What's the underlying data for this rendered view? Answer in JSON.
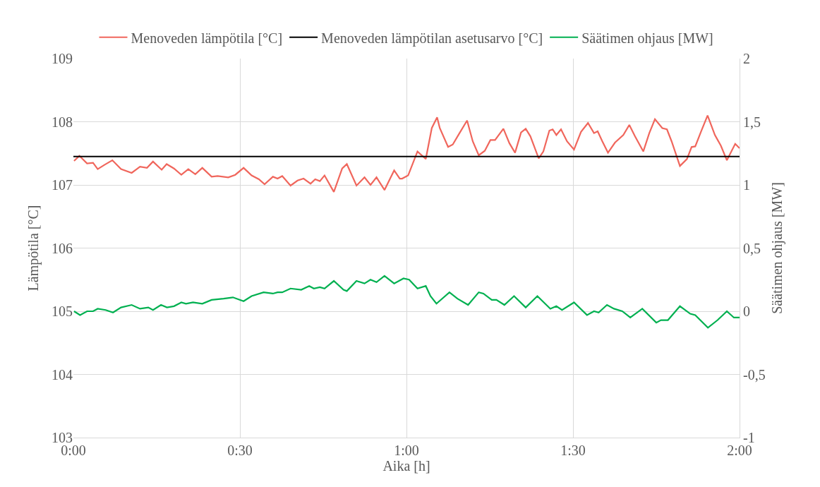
{
  "chart_data": {
    "type": "line",
    "xlabel": "Aika [h]",
    "ylabel": "Lämpötila [°C]",
    "y2label": "Säätimen ohjaus [MW]",
    "xlim": [
      0,
      2
    ],
    "xticks": [
      {
        "value": 0,
        "label": "0:00"
      },
      {
        "value": 0.5,
        "label": "0:30"
      },
      {
        "value": 1,
        "label": "1:00"
      },
      {
        "value": 1.5,
        "label": "1:30"
      },
      {
        "value": 2,
        "label": "2:00"
      }
    ],
    "ylim": [
      103,
      109
    ],
    "yticks": [
      103,
      104,
      105,
      106,
      107,
      108,
      109
    ],
    "y2lim": [
      -1,
      2
    ],
    "y2ticks": [
      -1,
      {
        "value": -0.5,
        "label": "-0,5"
      },
      0,
      {
        "value": 0.5,
        "label": "0,5"
      },
      1,
      {
        "value": 1.5,
        "label": "1,5"
      },
      2
    ],
    "grid": true,
    "legend": "top",
    "line_style": "solid",
    "marker": "none",
    "series": [
      {
        "name": "Menoveden lämpötila [°C]",
        "color": "#f0665c",
        "x": [
          0.002,
          0.018,
          0.041,
          0.059,
          0.073,
          0.094,
          0.117,
          0.143,
          0.175,
          0.2,
          0.221,
          0.239,
          0.265,
          0.28,
          0.302,
          0.324,
          0.345,
          0.366,
          0.387,
          0.415,
          0.433,
          0.465,
          0.486,
          0.511,
          0.535,
          0.557,
          0.574,
          0.599,
          0.613,
          0.627,
          0.652,
          0.673,
          0.691,
          0.712,
          0.726,
          0.74,
          0.754,
          0.782,
          0.807,
          0.821,
          0.85,
          0.874,
          0.892,
          0.91,
          0.934,
          0.963,
          0.98,
          0.987,
          1.005,
          1.033,
          1.058,
          1.076,
          1.092,
          1.1,
          1.125,
          1.139,
          1.157,
          1.182,
          1.199,
          1.217,
          1.235,
          1.252,
          1.266,
          1.291,
          1.309,
          1.326,
          1.344,
          1.358,
          1.372,
          1.397,
          1.411,
          1.429,
          1.439,
          1.45,
          1.464,
          1.482,
          1.503,
          1.524,
          1.545,
          1.563,
          1.574,
          1.588,
          1.605,
          1.626,
          1.651,
          1.669,
          1.686,
          1.711,
          1.729,
          1.746,
          1.768,
          1.782,
          1.796,
          1.821,
          1.842,
          1.856,
          1.867,
          1.884,
          1.904,
          1.926,
          1.944,
          1.962,
          1.987,
          2.0
        ],
        "values": [
          107.38,
          107.46,
          107.34,
          107.35,
          107.25,
          107.32,
          107.39,
          107.25,
          107.19,
          107.29,
          107.27,
          107.37,
          107.24,
          107.33,
          107.26,
          107.16,
          107.25,
          107.17,
          107.27,
          107.13,
          107.14,
          107.12,
          107.16,
          107.27,
          107.15,
          107.09,
          107.01,
          107.13,
          107.1,
          107.14,
          106.99,
          107.07,
          107.1,
          107.02,
          107.09,
          107.06,
          107.15,
          106.89,
          107.26,
          107.33,
          106.99,
          107.12,
          107.0,
          107.12,
          106.92,
          107.23,
          107.1,
          107.1,
          107.15,
          107.53,
          107.41,
          107.9,
          108.07,
          107.9,
          107.6,
          107.64,
          107.8,
          108.02,
          107.69,
          107.47,
          107.54,
          107.71,
          107.71,
          107.89,
          107.66,
          107.51,
          107.83,
          107.89,
          107.77,
          107.42,
          107.53,
          107.86,
          107.88,
          107.79,
          107.88,
          107.69,
          107.56,
          107.84,
          107.98,
          107.82,
          107.85,
          107.69,
          107.51,
          107.67,
          107.79,
          107.95,
          107.77,
          107.53,
          107.82,
          108.04,
          107.9,
          107.88,
          107.69,
          107.3,
          107.41,
          107.6,
          107.61,
          107.84,
          108.1,
          107.79,
          107.62,
          107.39,
          107.65,
          107.58
        ]
      },
      {
        "name": "Menoveden lämpötilan asetusarvo [°C]",
        "color": "#000000",
        "x": [
          0,
          2
        ],
        "values": [
          107.45,
          107.45
        ]
      },
      {
        "name": "Säätimen ohjaus [MW]",
        "color": "#00b050",
        "axis": "y2",
        "x": [
          0.002,
          0.02,
          0.041,
          0.059,
          0.073,
          0.097,
          0.119,
          0.143,
          0.175,
          0.2,
          0.225,
          0.239,
          0.263,
          0.281,
          0.302,
          0.324,
          0.338,
          0.359,
          0.387,
          0.415,
          0.451,
          0.479,
          0.511,
          0.535,
          0.571,
          0.599,
          0.613,
          0.627,
          0.652,
          0.684,
          0.708,
          0.722,
          0.74,
          0.754,
          0.782,
          0.811,
          0.821,
          0.85,
          0.874,
          0.892,
          0.91,
          0.934,
          0.963,
          0.991,
          1.008,
          1.033,
          1.058,
          1.072,
          1.09,
          1.129,
          1.153,
          1.185,
          1.217,
          1.231,
          1.256,
          1.27,
          1.294,
          1.323,
          1.358,
          1.393,
          1.432,
          1.45,
          1.467,
          1.503,
          1.542,
          1.563,
          1.577,
          1.602,
          1.623,
          1.648,
          1.672,
          1.708,
          1.75,
          1.764,
          1.785,
          1.821,
          1.852,
          1.867,
          1.905,
          1.934,
          1.962,
          1.983,
          2.0
        ],
        "values": [
          0.0,
          -0.03,
          0.0,
          0.0,
          0.02,
          0.01,
          -0.01,
          0.03,
          0.05,
          0.02,
          0.03,
          0.01,
          0.05,
          0.03,
          0.04,
          0.07,
          0.06,
          0.07,
          0.06,
          0.09,
          0.1,
          0.11,
          0.08,
          0.12,
          0.15,
          0.14,
          0.15,
          0.15,
          0.18,
          0.17,
          0.2,
          0.18,
          0.19,
          0.18,
          0.24,
          0.17,
          0.16,
          0.24,
          0.22,
          0.25,
          0.23,
          0.28,
          0.22,
          0.26,
          0.25,
          0.18,
          0.2,
          0.12,
          0.06,
          0.15,
          0.1,
          0.05,
          0.15,
          0.14,
          0.09,
          0.09,
          0.05,
          0.12,
          0.03,
          0.12,
          0.02,
          0.04,
          0.01,
          0.07,
          -0.03,
          0.0,
          -0.01,
          0.05,
          0.02,
          0.0,
          -0.05,
          0.02,
          -0.09,
          -0.07,
          -0.07,
          0.04,
          -0.02,
          -0.03,
          -0.13,
          -0.07,
          0.0,
          -0.05,
          -0.05
        ]
      }
    ]
  }
}
